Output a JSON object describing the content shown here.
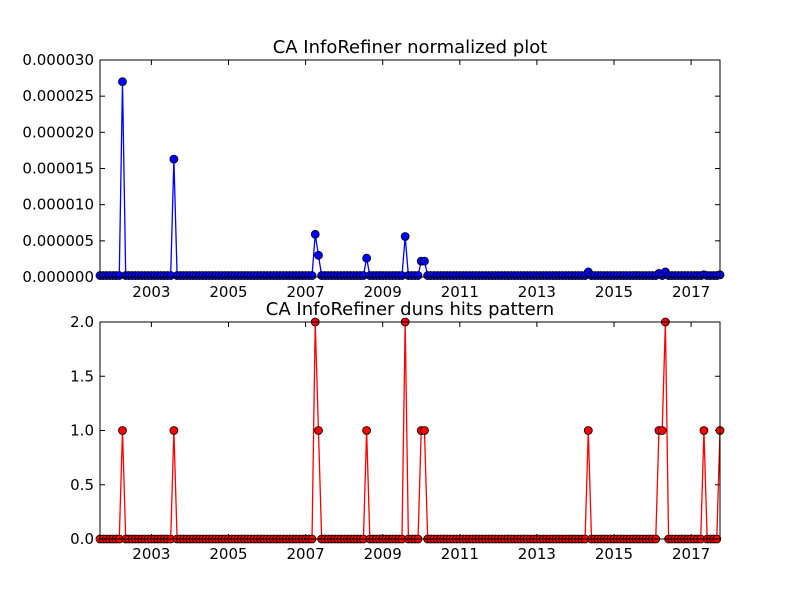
{
  "chart_data": [
    {
      "type": "line",
      "title": "CA InfoRefiner normalized plot",
      "xlabel": "",
      "ylabel": "",
      "xlim": [
        "2001-09",
        "2017-10"
      ],
      "ylim": [
        0,
        3e-05
      ],
      "x_ticks": [
        "2003",
        "2005",
        "2007",
        "2009",
        "2011",
        "2013",
        "2015",
        "2017"
      ],
      "y_ticks": [
        "0.000000",
        "0.000005",
        "0.000010",
        "0.000015",
        "0.000020",
        "0.000025",
        "0.000030"
      ],
      "grid": false,
      "series": [
        {
          "color": "#0000ff",
          "marker": "circle",
          "baseline": 2e-07,
          "points": [
            {
              "x": "2002-04",
              "y": 2.7e-05
            },
            {
              "x": "2003-08",
              "y": 1.63e-05
            },
            {
              "x": "2007-04",
              "y": 5.9e-06
            },
            {
              "x": "2007-05",
              "y": 3e-06
            },
            {
              "x": "2008-08",
              "y": 2.6e-06
            },
            {
              "x": "2009-08",
              "y": 5.6e-06
            },
            {
              "x": "2010-01",
              "y": 2.2e-06
            },
            {
              "x": "2010-02",
              "y": 2.2e-06
            },
            {
              "x": "2014-05",
              "y": 7e-07
            },
            {
              "x": "2016-03",
              "y": 5e-07
            },
            {
              "x": "2016-05",
              "y": 7e-07
            },
            {
              "x": "2017-05",
              "y": 3e-07
            },
            {
              "x": "2017-10",
              "y": 3e-07
            }
          ]
        }
      ]
    },
    {
      "type": "line",
      "title": "CA InfoRefiner duns hits pattern",
      "xlabel": "",
      "ylabel": "",
      "xlim": [
        "2001-09",
        "2017-10"
      ],
      "ylim": [
        0,
        2
      ],
      "x_ticks": [
        "2003",
        "2005",
        "2007",
        "2009",
        "2011",
        "2013",
        "2015",
        "2017"
      ],
      "y_ticks": [
        "0.0",
        "0.5",
        "1.0",
        "1.5",
        "2.0"
      ],
      "grid": false,
      "series": [
        {
          "color": "#ff0000",
          "marker": "circle",
          "baseline": 0,
          "points": [
            {
              "x": "2002-04",
              "y": 1
            },
            {
              "x": "2003-08",
              "y": 1
            },
            {
              "x": "2007-04",
              "y": 2
            },
            {
              "x": "2007-05",
              "y": 1
            },
            {
              "x": "2008-08",
              "y": 1
            },
            {
              "x": "2009-08",
              "y": 2
            },
            {
              "x": "2010-01",
              "y": 1
            },
            {
              "x": "2010-02",
              "y": 1
            },
            {
              "x": "2014-05",
              "y": 1
            },
            {
              "x": "2016-03",
              "y": 1
            },
            {
              "x": "2016-04",
              "y": 1
            },
            {
              "x": "2016-05",
              "y": 2
            },
            {
              "x": "2017-05",
              "y": 1
            },
            {
              "x": "2017-10",
              "y": 1
            }
          ]
        }
      ]
    }
  ]
}
